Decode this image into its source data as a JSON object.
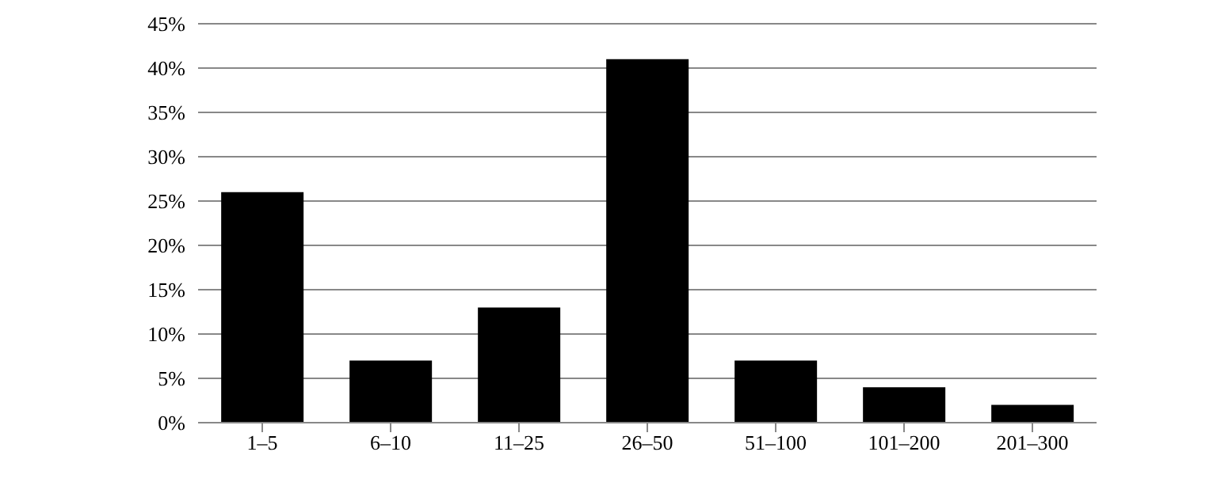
{
  "chart_data": {
    "type": "bar",
    "categories": [
      "1–5",
      "6–10",
      "11–25",
      "26–50",
      "51–100",
      "101–200",
      "201–300"
    ],
    "values": [
      26,
      7,
      13,
      41,
      7,
      4,
      2
    ],
    "color": "#000000",
    "ylim": [
      0,
      45
    ],
    "yticks": [
      {
        "value": 0,
        "label": "0%"
      },
      {
        "value": 5,
        "label": "5%"
      },
      {
        "value": 10,
        "label": "10%"
      },
      {
        "value": 15,
        "label": "15%"
      },
      {
        "value": 20,
        "label": "20%"
      },
      {
        "value": 25,
        "label": "25%"
      },
      {
        "value": 30,
        "label": "30%"
      },
      {
        "value": 35,
        "label": "35%"
      },
      {
        "value": 40,
        "label": "40%"
      },
      {
        "value": 45,
        "label": "45%"
      }
    ],
    "grid": "y",
    "legend": false
  }
}
